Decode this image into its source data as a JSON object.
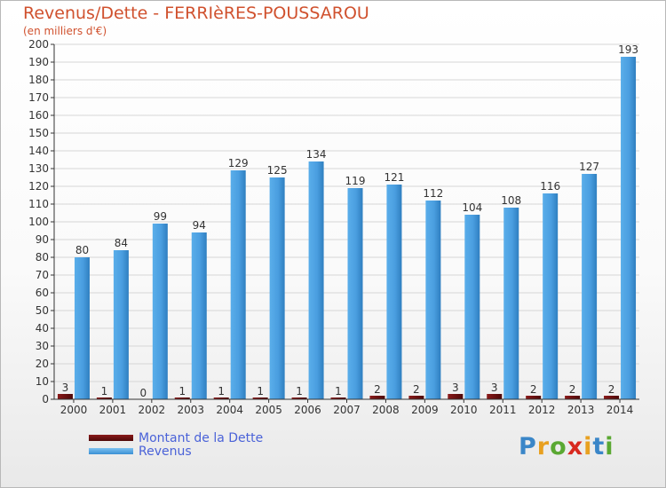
{
  "header": {
    "title": "Revenus/Dette - FERRIèRES-POUSSAROU",
    "subtitle": "(en milliers d'€)"
  },
  "legend": {
    "items": [
      {
        "label": "Montant de la Dette",
        "color": "#6b0f0f"
      },
      {
        "label": "Revenus",
        "color": "#56a8e6"
      }
    ]
  },
  "logo": {
    "text": "Proxiti",
    "letter_colors": [
      "#3a86c8",
      "#e8a020",
      "#5aa832",
      "#d8281e",
      "#e8a020",
      "#3a86c8",
      "#5aa832"
    ]
  },
  "chart_data": {
    "type": "bar",
    "title": "Revenus/Dette - FERRIèRES-POUSSAROU",
    "subtitle": "(en milliers d'€)",
    "xlabel": "",
    "ylabel": "",
    "ylim": [
      0,
      200
    ],
    "ytick_step": 10,
    "grid": true,
    "legend_position": "bottom-left",
    "categories": [
      "2000",
      "2001",
      "2002",
      "2003",
      "2004",
      "2005",
      "2006",
      "2007",
      "2008",
      "2009",
      "2010",
      "2011",
      "2012",
      "2013",
      "2014"
    ],
    "series": [
      {
        "name": "Montant de la Dette",
        "color": "#6b0f0f",
        "values": [
          3,
          1,
          0,
          1,
          1,
          1,
          1,
          1,
          2,
          2,
          3,
          3,
          2,
          2,
          2
        ]
      },
      {
        "name": "Revenus",
        "color": "#56a8e6",
        "values": [
          80,
          84,
          99,
          94,
          129,
          125,
          134,
          119,
          121,
          112,
          104,
          108,
          116,
          127,
          193
        ]
      }
    ]
  }
}
